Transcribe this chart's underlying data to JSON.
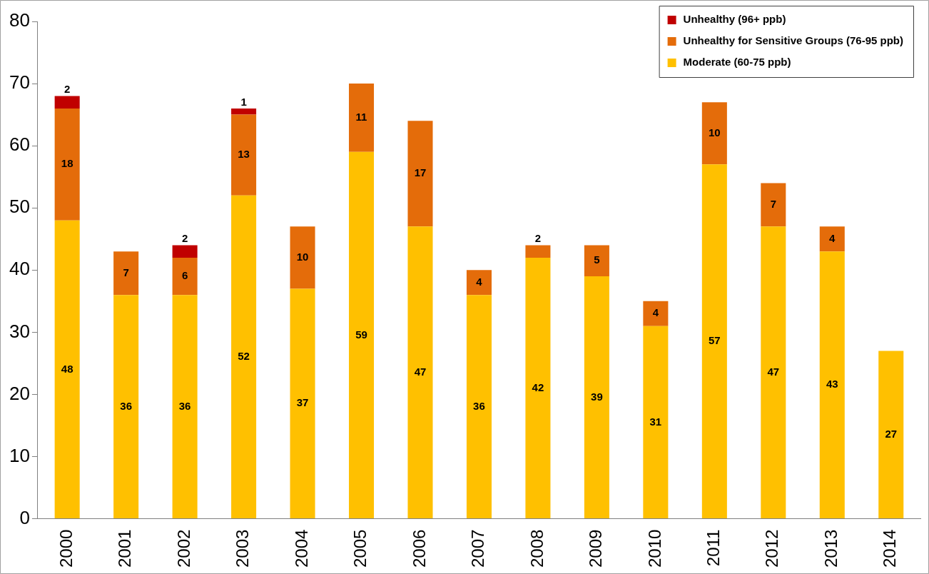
{
  "chart_data": {
    "type": "bar",
    "stacked": true,
    "categories": [
      "2000",
      "2001",
      "2002",
      "2003",
      "2004",
      "2005",
      "2006",
      "2007",
      "2008",
      "2009",
      "2010",
      "2011",
      "2012",
      "2013",
      "2014"
    ],
    "series": [
      {
        "name": "Moderate (60-75 ppb)",
        "color": "#ffc000",
        "values": [
          48,
          36,
          36,
          52,
          37,
          59,
          47,
          36,
          42,
          39,
          31,
          57,
          47,
          43,
          27
        ]
      },
      {
        "name": "Unhealthy for Sensitive Groups (76-95 ppb)",
        "color": "#e46c0a",
        "values": [
          18,
          7,
          6,
          13,
          10,
          11,
          17,
          4,
          2,
          5,
          4,
          10,
          7,
          4,
          null
        ]
      },
      {
        "name": "Unhealthy (96+ ppb)",
        "color": "#c00000",
        "values": [
          2,
          null,
          2,
          1,
          null,
          null,
          null,
          null,
          null,
          null,
          null,
          null,
          null,
          null,
          null
        ]
      }
    ],
    "ylim": [
      0,
      80
    ],
    "yticks": [
      0,
      10,
      20,
      30,
      40,
      50,
      60,
      70,
      80
    ],
    "grid": false,
    "legend": "top right",
    "data_labels": true
  }
}
